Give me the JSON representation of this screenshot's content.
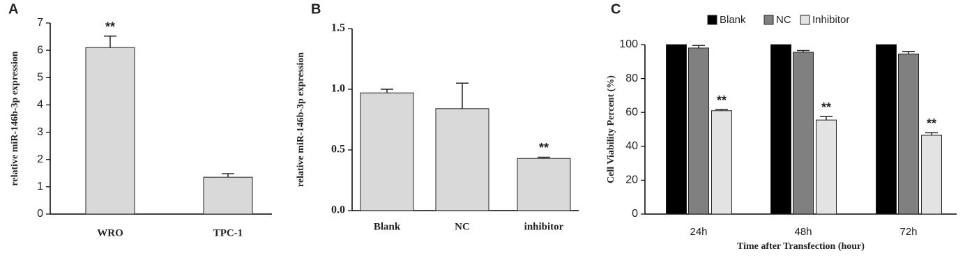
{
  "chart_data": [
    {
      "type": "bar",
      "panel": "A",
      "ylabel": "relative miR-146b-3p expression",
      "categories": [
        "WRO",
        "TPC-1"
      ],
      "values": [
        6.1,
        1.35
      ],
      "errors": [
        0.42,
        0.13
      ],
      "significance": [
        "**",
        null
      ],
      "color": "#d9d9d9",
      "ylim": [
        0,
        7
      ],
      "yticks": [
        0,
        1,
        2,
        3,
        4,
        5,
        6,
        7
      ]
    },
    {
      "type": "bar",
      "panel": "B",
      "ylabel": "relative miR-146b-3p expression",
      "categories": [
        "Blank",
        "NC",
        "inhibitor"
      ],
      "values": [
        0.97,
        0.84,
        0.43
      ],
      "errors": [
        0.03,
        0.21,
        0.01
      ],
      "significance": [
        null,
        null,
        "**"
      ],
      "color": "#d9d9d9",
      "ylim": [
        0,
        1.5
      ],
      "yticks": [
        {
          "value": 0,
          "label": "0.0"
        },
        0.5,
        {
          "value": 1,
          "label": "1.0"
        },
        1.5
      ]
    },
    {
      "type": "grouped-bar",
      "panel": "C",
      "ylabel": "Cell Viability Percent (%)",
      "xlabel": "Time after Transfection (hour)",
      "categories": [
        "24h",
        "48h",
        "72h"
      ],
      "series": [
        {
          "name": "Blank",
          "color": "#000000",
          "values": [
            100,
            100,
            100
          ]
        },
        {
          "name": "NC",
          "color": "#808080",
          "values": [
            98,
            95.5,
            94.5
          ],
          "errors": [
            1.5,
            1,
            1.5
          ]
        },
        {
          "name": "Inhibitor",
          "color": "#e3e3e3",
          "values": [
            61,
            55.5,
            46.5
          ],
          "errors": [
            0.7,
            2,
            1.5
          ],
          "significance": [
            "**",
            "**",
            "**"
          ]
        }
      ],
      "ylim": [
        0,
        100
      ],
      "yticks": [
        0,
        20,
        40,
        60,
        80,
        100
      ],
      "legend": "top"
    }
  ]
}
